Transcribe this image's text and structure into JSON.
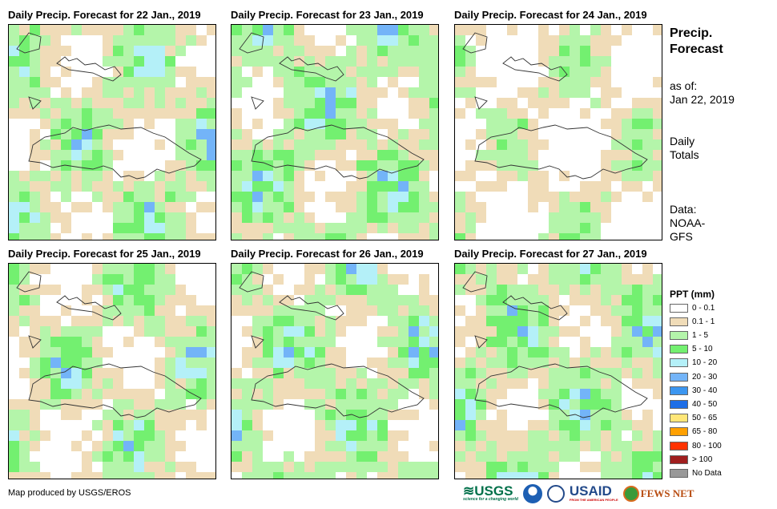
{
  "panels": [
    {
      "title": "Daily Precip. Forecast for 22 Jan., 2019",
      "seed": 3,
      "bias": 0.4
    },
    {
      "title": "Daily Precip. Forecast for 23 Jan., 2019",
      "seed": 7,
      "bias": 0.45
    },
    {
      "title": "Daily Precip. Forecast for 24 Jan., 2019",
      "seed": 11,
      "bias": 0.2
    },
    {
      "title": "Daily Precip. Forecast for 25 Jan., 2019",
      "seed": 17,
      "bias": 0.35
    },
    {
      "title": "Daily Precip. Forecast for 26 Jan., 2019",
      "seed": 23,
      "bias": 0.4
    },
    {
      "title": "Daily Precip. Forecast for 27 Jan., 2019",
      "seed": 29,
      "bias": 0.45
    }
  ],
  "side": {
    "title_line1": "Precip.",
    "title_line2": "Forecast",
    "asof_label": "as of:",
    "asof_date": "Jan 22, 2019",
    "daily_line1": "Daily",
    "daily_line2": "Totals",
    "data_line1": "Data:",
    "data_line2": "NOAA-",
    "data_line3": "GFS"
  },
  "legend": {
    "title": "PPT (mm)",
    "items": [
      {
        "label": "0 - 0.1",
        "color": "#ffffff"
      },
      {
        "label": "0.1 - 1",
        "color": "#f0dcb8"
      },
      {
        "label": "1 - 5",
        "color": "#b4f5aa"
      },
      {
        "label": "5 - 10",
        "color": "#73f070"
      },
      {
        "label": "10 - 20",
        "color": "#b4f0f8"
      },
      {
        "label": "20 - 30",
        "color": "#73b4f8"
      },
      {
        "label": "30 - 40",
        "color": "#3c96f0"
      },
      {
        "label": "40 - 50",
        "color": "#1e6ee6"
      },
      {
        "label": "50 - 65",
        "color": "#ffe678"
      },
      {
        "label": "65 - 80",
        "color": "#ffa000"
      },
      {
        "label": "80 - 100",
        "color": "#ff3200"
      },
      {
        "label": "> 100",
        "color": "#a01e1e"
      },
      {
        "label": "No Data",
        "color": "#999999"
      }
    ]
  },
  "credit": "Map produced by USGS/EROS",
  "logos": {
    "usgs": "USGS",
    "usgs_tagline": "science for a changing world",
    "usaid": "USAID",
    "usaid_tagline": "FROM THE AMERICAN PEOPLE",
    "fews": "FEWS NET"
  }
}
